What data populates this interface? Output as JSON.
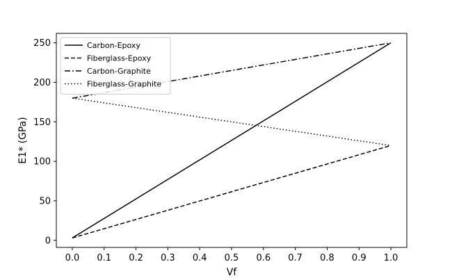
{
  "chart_data": {
    "type": "line",
    "title": "",
    "xlabel": "Vf",
    "ylabel": "E1* (GPa)",
    "xlim": [
      -0.05,
      1.05
    ],
    "ylim": [
      -9,
      262
    ],
    "xticks": [
      0.0,
      0.1,
      0.2,
      0.3,
      0.4,
      0.5,
      0.6,
      0.7,
      0.8,
      0.9,
      1.0
    ],
    "xtick_labels": [
      "0.0",
      "0.1",
      "0.2",
      "0.3",
      "0.4",
      "0.5",
      "0.6",
      "0.7",
      "0.8",
      "0.9",
      "1.0"
    ],
    "yticks": [
      0,
      50,
      100,
      150,
      200,
      250
    ],
    "ytick_labels": [
      "0",
      "50",
      "100",
      "150",
      "200",
      "250"
    ],
    "grid": false,
    "legend_position": "top-left",
    "series": [
      {
        "name": "Carbon-Epoxy",
        "x": [
          0.0,
          1.0
        ],
        "y": [
          3,
          250
        ],
        "color": "#000000",
        "style": "solid"
      },
      {
        "name": "Fiberglass-Epoxy",
        "x": [
          0.0,
          1.0
        ],
        "y": [
          3,
          120
        ],
        "color": "#000000",
        "style": "dashed"
      },
      {
        "name": "Carbon-Graphite",
        "x": [
          0.0,
          1.0
        ],
        "y": [
          180,
          250
        ],
        "color": "#000000",
        "style": "dashdot"
      },
      {
        "name": "Fiberglass-Graphite",
        "x": [
          0.0,
          1.0
        ],
        "y": [
          180,
          120
        ],
        "color": "#000000",
        "style": "dotted"
      }
    ]
  }
}
